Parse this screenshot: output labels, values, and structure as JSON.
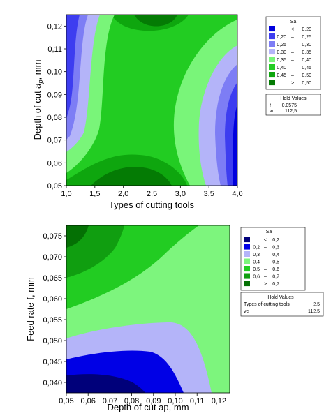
{
  "chart_data": [
    {
      "type": "contour",
      "xlabel": "Types of cutting tools",
      "ylabel_main": "Depth of cut ",
      "ylabel_symbol": "a",
      "ylabel_sub": "p",
      "ylabel_unit": ", mm",
      "xlim": [
        1.0,
        4.0
      ],
      "ylim": [
        0.05,
        0.125
      ],
      "x_ticks": [
        "1,0",
        "1,5",
        "2,0",
        "2,5",
        "3,0",
        "3,5",
        "4,0"
      ],
      "y_ticks": [
        "0,05",
        "0,06",
        "0,07",
        "0,08",
        "0,09",
        "0,10",
        "0,11",
        "0,12"
      ],
      "legend": {
        "title": "Sa",
        "items": [
          {
            "op": "<",
            "lo": "",
            "hi": "0,20",
            "color": "#0000dd"
          },
          {
            "op": "",
            "lo": "0,20",
            "hi": "0,25",
            "color": "#3d3df0"
          },
          {
            "op": "",
            "lo": "0,25",
            "hi": "0,30",
            "color": "#7d7df5"
          },
          {
            "op": "",
            "lo": "0,30",
            "hi": "0,35",
            "color": "#b4b4f9"
          },
          {
            "op": "",
            "lo": "0,35",
            "hi": "0,40",
            "color": "#79f579"
          },
          {
            "op": "",
            "lo": "0,40",
            "hi": "0,45",
            "color": "#22cc22"
          },
          {
            "op": "",
            "lo": "0,45",
            "hi": "0,50",
            "color": "#0ea60e"
          },
          {
            "op": ">",
            "lo": "",
            "hi": "0,50",
            "color": "#047b04"
          }
        ]
      },
      "hold_values": {
        "title": "Hold Values",
        "rows": [
          [
            "f",
            "0,0575"
          ],
          [
            "vc",
            "112,5"
          ]
        ]
      }
    },
    {
      "type": "contour",
      "xlabel": "Depth of cut ap, mm",
      "ylabel": "Feed rate f, mm",
      "xlim": [
        0.05,
        0.125
      ],
      "ylim": [
        0.0375,
        0.0775
      ],
      "x_ticks": [
        "0,05",
        "0,06",
        "0,07",
        "0,08",
        "0,09",
        "0,10",
        "0,11",
        "0,12"
      ],
      "y_ticks": [
        "0,040",
        "0,045",
        "0,050",
        "0,055",
        "0,060",
        "0,065",
        "0,070",
        "0,075"
      ],
      "legend": {
        "title": "Sa",
        "items": [
          {
            "op": "<",
            "lo": "",
            "hi": "0,2",
            "color": "#00007a"
          },
          {
            "op": "",
            "lo": "0,2",
            "hi": "0,3",
            "color": "#0000e6"
          },
          {
            "op": "",
            "lo": "0,3",
            "hi": "0,4",
            "color": "#b4b4f9"
          },
          {
            "op": "",
            "lo": "0,4",
            "hi": "0,5",
            "color": "#7df57d"
          },
          {
            "op": "",
            "lo": "0,5",
            "hi": "0,6",
            "color": "#22cc22"
          },
          {
            "op": "",
            "lo": "0,6",
            "hi": "0,7",
            "color": "#109e10"
          },
          {
            "op": ">",
            "lo": "",
            "hi": "0,7",
            "color": "#047004"
          }
        ]
      },
      "hold_values": {
        "title": "Hold Values",
        "rows": [
          [
            "Types of cutting tools",
            "2,5"
          ],
          [
            "vc",
            "112,5"
          ]
        ]
      }
    }
  ]
}
